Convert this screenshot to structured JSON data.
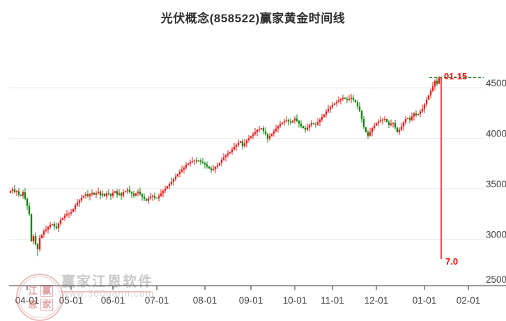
{
  "watermark": {
    "brand": "赢家江恩软件",
    "url": "www.360gann.com",
    "seal_chars": [
      "江",
      "赢",
      "恩",
      "家"
    ]
  },
  "chart_data": {
    "type": "candlestick",
    "title": "光伏概念(858522)赢家黄金时间线",
    "up_color": "#ef1a1a",
    "down_color": "#0f860f",
    "event_line_color": "#ff0000",
    "target_line_color": "#0f860f",
    "axis_color": "#555555",
    "grid": true,
    "legend": false,
    "ylim": [
      2500,
      4750
    ],
    "y_tick_values": [
      4500,
      4000,
      3500,
      3000,
      2500
    ],
    "x_tick_labels": [
      "04-01",
      "05-01",
      "06-01",
      "07-01",
      "08-01",
      "09-01",
      "10-01",
      "11-01",
      "12-01",
      "01-01",
      "02-01"
    ],
    "x_tick_positions": [
      8,
      29,
      49,
      70,
      93,
      115,
      136,
      154,
      175,
      198,
      219
    ],
    "first_open": 3460,
    "closes": [
      3480,
      3495,
      3465,
      3475,
      3440,
      3430,
      3465,
      3400,
      3330,
      3250,
      2980,
      3030,
      2950,
      2900,
      3010,
      3045,
      3080,
      3095,
      3120,
      3140,
      3150,
      3125,
      3110,
      3155,
      3190,
      3210,
      3235,
      3250,
      3255,
      3270,
      3300,
      3335,
      3360,
      3385,
      3410,
      3430,
      3445,
      3425,
      3445,
      3460,
      3440,
      3455,
      3470,
      3435,
      3450,
      3425,
      3455,
      3445,
      3430,
      3460,
      3475,
      3440,
      3455,
      3430,
      3465,
      3475,
      3490,
      3465,
      3450,
      3430,
      3455,
      3470,
      3445,
      3420,
      3400,
      3380,
      3405,
      3420,
      3430,
      3410,
      3405,
      3430,
      3455,
      3480,
      3500,
      3525,
      3545,
      3570,
      3595,
      3620,
      3645,
      3670,
      3690,
      3710,
      3735,
      3750,
      3765,
      3775,
      3780,
      3770,
      3780,
      3765,
      3755,
      3740,
      3720,
      3700,
      3685,
      3695,
      3715,
      3730,
      3755,
      3785,
      3810,
      3830,
      3850,
      3865,
      3890,
      3915,
      3935,
      3955,
      3970,
      3920,
      3950,
      3980,
      4000,
      4020,
      4040,
      4060,
      4080,
      4090,
      4100,
      4070,
      4040,
      3995,
      4020,
      4045,
      4070,
      4095,
      4120,
      4140,
      4155,
      4170,
      4180,
      4165,
      4155,
      4175,
      4195,
      4170,
      4145,
      4120,
      4100,
      4085,
      4105,
      4130,
      4150,
      4140,
      4135,
      4160,
      4185,
      4210,
      4235,
      4265,
      4290,
      4310,
      4330,
      4345,
      4360,
      4375,
      4390,
      4400,
      4390,
      4380,
      4390,
      4400,
      4380,
      4355,
      4315,
      4270,
      4190,
      4110,
      4060,
      4025,
      4060,
      4100,
      4125,
      4150,
      4165,
      4175,
      4185,
      4190,
      4160,
      4130,
      4145,
      4150,
      4105,
      4060,
      4085,
      4115,
      4155,
      4190,
      4200,
      4180,
      4215,
      4245,
      4230,
      4240,
      4265,
      4290,
      4335,
      4380,
      4425,
      4470,
      4515,
      4570,
      4540,
      4600
    ],
    "wick_low_overrides": {
      "13": 2830
    },
    "wick_high_overrides": {
      "163": 4440,
      "205": 4615
    },
    "event_line_index": 206,
    "annotations": {
      "date_label": "01-15",
      "cycle_label": "7.0",
      "last_price_level": 4600
    }
  }
}
